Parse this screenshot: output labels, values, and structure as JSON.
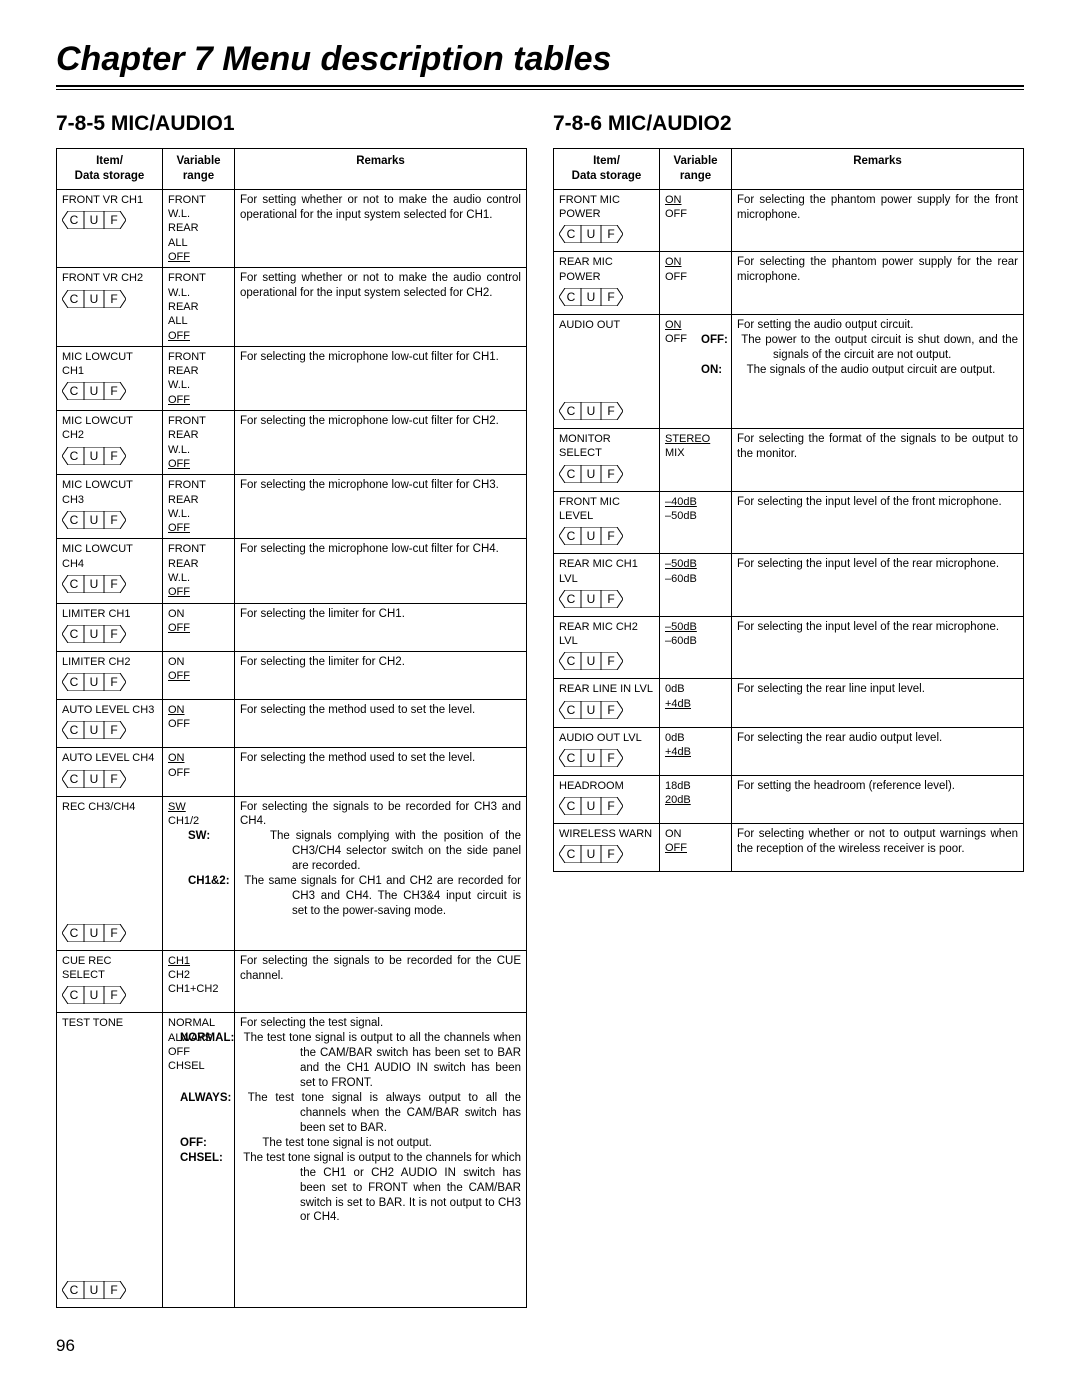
{
  "chapter_title": "Chapter 7  Menu description tables",
  "page_number": "96",
  "sections": {
    "left": {
      "title": "7-8-5 MIC/AUDIO1",
      "headers": {
        "item": "Item/\nData storage",
        "var": "Variable\nrange",
        "rem": "Remarks"
      }
    },
    "right": {
      "title": "7-8-6 MIC/AUDIO2",
      "headers": {
        "item": "Item/\nData storage",
        "var": "Variable\nrange",
        "rem": "Remarks"
      }
    }
  },
  "t1": {
    "r0": {
      "item": "FRONT VR CH1",
      "vars": [
        "FRONT",
        "W.L.",
        "REAR",
        "ALL"
      ],
      "def": "OFF",
      "rem": "For setting whether or not to make the audio control operational for the input system selected for CH1."
    },
    "r1": {
      "item": "FRONT VR CH2",
      "vars": [
        "FRONT",
        "W.L.",
        "REAR",
        "ALL"
      ],
      "def": "OFF",
      "rem": "For setting whether or not to make the audio control operational for the input system selected for CH2."
    },
    "r2": {
      "item": "MIC LOWCUT CH1",
      "vars": [
        "FRONT",
        "REAR",
        "W.L."
      ],
      "def": "OFF",
      "rem": "For selecting the microphone low-cut filter for CH1."
    },
    "r3": {
      "item": "MIC LOWCUT CH2",
      "vars": [
        "FRONT",
        "REAR",
        "W.L."
      ],
      "def": "OFF",
      "rem": "For selecting the microphone low-cut filter for CH2."
    },
    "r4": {
      "item": "MIC LOWCUT CH3",
      "vars": [
        "FRONT",
        "REAR",
        "W.L."
      ],
      "def": "OFF",
      "rem": "For selecting the microphone low-cut filter for CH3."
    },
    "r5": {
      "item": "MIC LOWCUT CH4",
      "vars": [
        "FRONT",
        "REAR",
        "W.L."
      ],
      "def": "OFF",
      "rem": "For selecting the microphone low-cut filter for CH4."
    },
    "r6": {
      "item": "LIMITER CH1",
      "vars": [
        "ON"
      ],
      "def": "OFF",
      "rem": "For selecting the limiter for CH1."
    },
    "r7": {
      "item": "LIMITER CH2",
      "vars": [
        "ON"
      ],
      "def": "OFF",
      "rem": "For selecting the limiter for CH2."
    },
    "r8": {
      "item": "AUTO LEVEL CH3",
      "vars": [
        "OFF"
      ],
      "def_first": "ON",
      "rem": "For selecting the method used to set the level."
    },
    "r9": {
      "item": "AUTO LEVEL CH4",
      "vars": [
        "OFF"
      ],
      "def_first": "ON",
      "rem": "For selecting the method used to set the level."
    },
    "r10": {
      "item": "REC CH3/CH4",
      "def_first": "SW",
      "vars": [
        "CH1/2"
      ],
      "rem_intro": "For selecting the signals to be recorded for CH3 and CH4.",
      "sw_label": "SW:",
      "sw_text": "The signals complying with the position of the CH3/CH4 selector switch on the side panel are recorded.",
      "ch12_label": "CH1&2:",
      "ch12_text": "The same signals for CH1 and CH2 are recorded for CH3 and CH4.  The CH3&4 input circuit is set to the power-saving mode."
    },
    "r11": {
      "item": "CUE REC SELECT",
      "def_first": "CH1",
      "vars": [
        "CH2",
        "CH1+CH2"
      ],
      "rem": "For selecting the signals to be recorded for the CUE channel."
    },
    "r12": {
      "item": "TEST TONE",
      "vars": [
        "NORMAL",
        "ALWAYS",
        "OFF",
        "CHSEL"
      ],
      "rem_intro": "For selecting the test signal.",
      "normal_label": "NORMAL:",
      "normal_text": "The test tone signal is output to all the channels when the CAM/BAR switch has been set to BAR and the CH1 AUDIO IN switch has been set to FRONT.",
      "always_label": "ALWAYS:",
      "always_text": "The test tone signal is always output to all the channels when the CAM/BAR switch has been set to BAR.",
      "off_label": "OFF:",
      "off_text": "The test tone signal is not output.",
      "chsel_label": "CHSEL:",
      "chsel_text": "The test tone signal is output to the channels for which the CH1 or CH2 AUDIO IN switch has been set to FRONT when the CAM/BAR switch is set to BAR.  It is not output to CH3 or CH4."
    }
  },
  "t2": {
    "r0": {
      "item": "FRONT MIC\nPOWER",
      "def_first": "ON",
      "vars": [
        "OFF"
      ],
      "rem": "For selecting the phantom power supply for the front microphone."
    },
    "r1": {
      "item": "REAR MIC POWER",
      "def_first": "ON",
      "vars": [
        "OFF"
      ],
      "rem": "For selecting the phantom power supply for the rear microphone."
    },
    "r2": {
      "item": "AUDIO OUT",
      "def_first": "ON",
      "vars": [
        "OFF"
      ],
      "rem_intro": "For setting the audio output circuit.",
      "off_label": "OFF:",
      "off_text": "The power to the output circuit is shut down, and the signals of the circuit are not output.",
      "on_label": "ON:",
      "on_text": "The signals of the audio output circuit are output."
    },
    "r3": {
      "item": "MONITOR SELECT",
      "def_first": "STEREO",
      "vars": [
        "MIX"
      ],
      "rem": "For selecting the format of the signals to be output to the monitor."
    },
    "r4": {
      "item": "FRONT MIC LEVEL",
      "def_first": "–40dB",
      "vars": [
        "–50dB"
      ],
      "rem": "For selecting the input level of the front microphone."
    },
    "r5": {
      "item": "REAR MIC CH1\nLVL",
      "def_first": "–50dB",
      "vars": [
        "–60dB"
      ],
      "rem": "For selecting the input level of the rear microphone."
    },
    "r6": {
      "item": "REAR MIC CH2\nLVL",
      "def_first": "–50dB",
      "vars": [
        "–60dB"
      ],
      "rem": "For selecting the input level of the rear microphone."
    },
    "r7": {
      "item": "REAR LINE IN LVL",
      "vars": [
        "0dB"
      ],
      "def": "+4dB",
      "rem": "For selecting the rear line input level."
    },
    "r8": {
      "item": "AUDIO OUT LVL",
      "vars": [
        "0dB"
      ],
      "def": "+4dB",
      "rem": "For selecting the rear audio output level."
    },
    "r9": {
      "item": "HEADROOM",
      "vars": [
        "18dB"
      ],
      "def": "20dB",
      "rem": "For setting the headroom (reference level)."
    },
    "r10": {
      "item": "WIRELESS WARN",
      "vars": [
        "ON"
      ],
      "def": "OFF",
      "rem": "For selecting whether or not to output warnings when the reception of the wireless receiver is poor."
    }
  },
  "cuf": {
    "c": "C",
    "u": "U",
    "f": "F"
  }
}
